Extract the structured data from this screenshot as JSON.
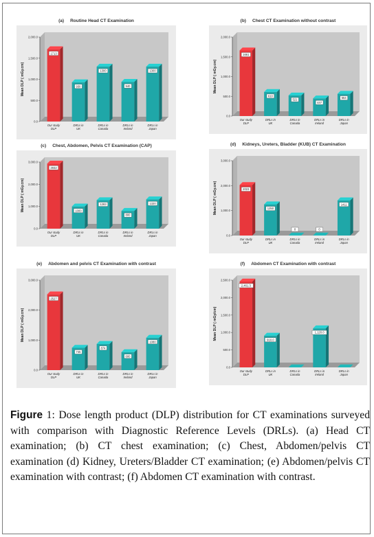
{
  "caption": {
    "label": "Figure",
    "text": " 1: Dose length product (DLP) distribution for CT examinations surveyed with comparison with Diagnostic Reference Levels (DRLs). (a) Head CT examination; (b) CT chest examination; (c) Chest, Abdomen/pelvis CT examination (d) Kidney, Ureters/Bladder CT examination; (e) Abdomen/pelvis CT examination with contrast; (f) Abdomen CT examination with contrast."
  },
  "colors": {
    "highlight_bar": "#e8373c",
    "bar": "#1fa7a8",
    "plot_bg": "#c8c8c8",
    "panel_bg": "#ebebeb"
  },
  "chart_data": [
    {
      "id": "a",
      "type": "bar",
      "letter": "(a)",
      "title": "Routine Head CT Examination",
      "ylabel": "Mean DLP ( mGy.cm)",
      "ylim": [
        0,
        2000
      ],
      "yticks": [
        "0.0",
        "500.0",
        "1,000.0",
        "1,500.0",
        "2,000.0"
      ],
      "categories": [
        "Our study DLP",
        "DRLs in UK",
        "DRLs in Canada",
        "DRLs in Ireland",
        "DRLs in Japan"
      ],
      "values": [
        1713,
        930,
        1300,
        940,
        1300
      ],
      "labels": [
        "1713",
        "930",
        "1300",
        "940",
        "1300"
      ]
    },
    {
      "id": "b",
      "type": "bar",
      "letter": "(b)",
      "title": "Chest CT Examination without contrast",
      "ylabel": "Mean DLP ( mGy.cm)",
      "ylim": [
        0,
        2000
      ],
      "yticks": [
        "0.0",
        "500.0",
        "1,000.0",
        "1,500.0",
        "2,000.0"
      ],
      "categories": [
        "Our study DLP",
        "DRLs in UK",
        "DRLs in Canada",
        "DRLs in Ireland",
        "DRLs in Japan"
      ],
      "values": [
        1661,
        610,
        521,
        447,
        564
      ],
      "labels": [
        "1661",
        "610",
        "521",
        "447",
        "564"
      ]
    },
    {
      "id": "c",
      "type": "bar",
      "letter": "(c)",
      "title": "Chest, Abdomen, Pelvis CT Examination (CAP)",
      "ylabel": "Mean DLP ( mGy.cm)",
      "ylim": [
        0,
        3000
      ],
      "yticks": [
        "0.0",
        "1,000.0",
        "2,000.0",
        "3,000.0"
      ],
      "categories": [
        "Our study DLP",
        "DRLs in UK",
        "DRLs in Canada",
        "DRLs in Ireland",
        "DRLs in Japan"
      ],
      "values": [
        2932,
        1000,
        1283,
        800,
        1320
      ],
      "labels": [
        "2932",
        "1000",
        "1283",
        "800",
        "1320"
      ]
    },
    {
      "id": "d",
      "type": "bar",
      "letter": "(d)",
      "title": "Kidneys, Ureters, Bladder (KUB) CT Examination",
      "ylabel": "Mean DLP ( mGy.cm)",
      "ylim": [
        0,
        3000
      ],
      "yticks": [
        "0.0",
        "1,000.0",
        "2,000.0",
        "3,000.0"
      ],
      "categories": [
        "Our study DLP",
        "DRLs in UK",
        "DRLs in Canada",
        "DRLs in Ireland",
        "DRLs in Japan"
      ],
      "values": [
        2023,
        1250,
        0,
        0,
        1411
      ],
      "labels": [
        "2023",
        "1250",
        "0",
        "0",
        "1411"
      ]
    },
    {
      "id": "e",
      "type": "bar",
      "letter": "(e)",
      "title": "Abdomen and pelvis CT Examination with contrast",
      "ylabel": "Mean DLP ( mGy.cm)",
      "ylim": [
        0,
        3000
      ],
      "yticks": [
        "0.0",
        "1,000.0",
        "2,000.0",
        "3,000.0"
      ],
      "categories": [
        "Our study DLP",
        "DRLs in UK",
        "DRLs in Canada",
        "DRLs in Ireland",
        "DRLs in Japan"
      ],
      "values": [
        2527,
        745,
        874,
        600,
        1080
      ],
      "labels": [
        "2527",
        "745",
        "874",
        "600",
        "1080"
      ]
    },
    {
      "id": "f",
      "type": "bar",
      "letter": "(f)",
      "title": "Abdomen CT Examination with contrast",
      "ylabel": "Mean DLP ( mGy/cm)",
      "ylim": [
        0,
        2500
      ],
      "yticks": [
        "0.0",
        "500.0",
        "1,000.0",
        "1,500.0",
        "2,000.0",
        "2,500.0"
      ],
      "categories": [
        "Our study DLP",
        "DRLs in UK",
        "DRLs in Canada",
        "DRLs in Ireland",
        "DRLs in Japan"
      ],
      "values": [
        2461.3,
        910,
        0,
        1120,
        0
      ],
      "labels": [
        "2,461.3",
        "910.0",
        "",
        "1,120.0",
        ""
      ]
    }
  ]
}
